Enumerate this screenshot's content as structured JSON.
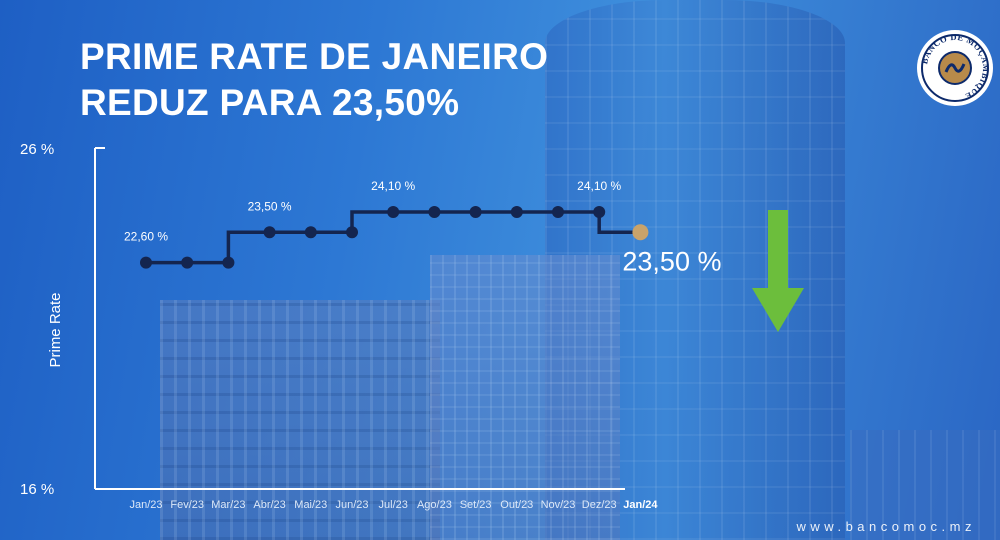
{
  "title_line1": "PRIME RATE DE JANEIRO",
  "title_line2": "REDUZ PARA 23,50%",
  "logo_text": "BANCO DE MOÇAMBIQUE",
  "website": "www.bancomoc.mz",
  "highlight_value": "23,50 %",
  "colors": {
    "line": "#14254f",
    "highlight_dot": "#c9a36a",
    "arrow": "#6cbe3c",
    "axis": "#ffffff",
    "logo_ring": "#0d2a6b",
    "logo_center": "#b88a4a"
  },
  "chart_data": {
    "type": "line",
    "step": true,
    "ylabel": "Prime Rate",
    "ylim": [
      16,
      26
    ],
    "y_tick_labels": [
      "26 %",
      "16 %"
    ],
    "categories": [
      "Jan/23",
      "Fev/23",
      "Mar/23",
      "Abr/23",
      "Mai/23",
      "Jun/23",
      "Jul/23",
      "Ago/23",
      "Set/23",
      "Out/23",
      "Nov/23",
      "Dez/23",
      "Jan/24"
    ],
    "values": [
      22.6,
      22.6,
      22.6,
      23.5,
      23.5,
      23.5,
      24.1,
      24.1,
      24.1,
      24.1,
      24.1,
      24.1,
      23.5
    ],
    "point_labels": [
      {
        "index": 0,
        "text": "22,60 %"
      },
      {
        "index": 3,
        "text": "23,50 %"
      },
      {
        "index": 6,
        "text": "24,10 %"
      },
      {
        "index": 11,
        "text": "24,10 %"
      }
    ],
    "highlight_index": 12
  }
}
